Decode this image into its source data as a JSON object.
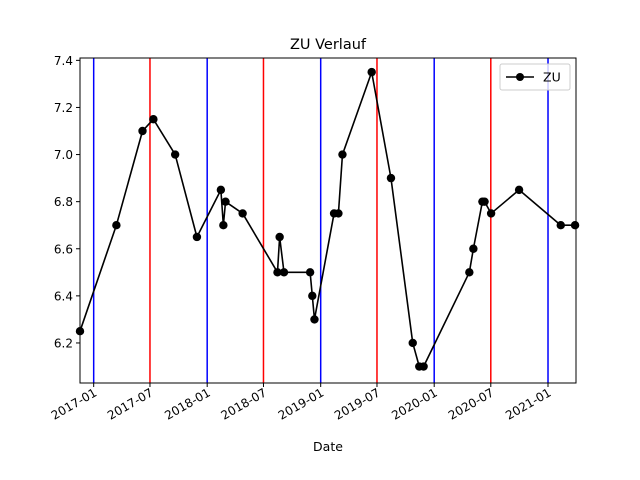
{
  "chart_data": {
    "type": "line",
    "title": "ZU Verlauf",
    "xlabel": "Date",
    "ylabel": "",
    "xlim": [
      "2016-11-18",
      "2021-04-01"
    ],
    "ylim": [
      6.03,
      7.41
    ],
    "x_ticks": [
      "2017-01-01",
      "2017-07-01",
      "2018-01-01",
      "2018-07-01",
      "2019-01-01",
      "2019-07-01",
      "2020-01-01",
      "2020-07-01",
      "2021-01-01"
    ],
    "x_tick_labels": [
      "2017-01",
      "2017-07",
      "2018-01",
      "2018-07",
      "2019-01",
      "2019-07",
      "2020-01",
      "2020-07",
      "2021-01"
    ],
    "y_ticks": [
      6.2,
      6.4,
      6.6,
      6.8,
      7.0,
      7.2,
      7.4
    ],
    "y_tick_labels": [
      "6.2",
      "6.4",
      "6.6",
      "6.8",
      "7.0",
      "7.2",
      "7.4"
    ],
    "grid": false,
    "legend": {
      "position": "top-right"
    },
    "vertical_lines": [
      {
        "x": "2017-01-01",
        "color": "#0000ff"
      },
      {
        "x": "2017-07-01",
        "color": "#ff0000"
      },
      {
        "x": "2018-01-01",
        "color": "#0000ff"
      },
      {
        "x": "2018-07-01",
        "color": "#ff0000"
      },
      {
        "x": "2019-01-01",
        "color": "#0000ff"
      },
      {
        "x": "2019-07-01",
        "color": "#ff0000"
      },
      {
        "x": "2020-01-01",
        "color": "#0000ff"
      },
      {
        "x": "2020-07-01",
        "color": "#ff0000"
      },
      {
        "x": "2021-01-01",
        "color": "#0000ff"
      }
    ],
    "series": [
      {
        "name": "ZU",
        "color": "#000000",
        "marker": "circle",
        "x": [
          "2016-11-18",
          "2017-03-15",
          "2017-06-07",
          "2017-07-12",
          "2017-09-20",
          "2017-11-29",
          "2018-02-14",
          "2018-02-22",
          "2018-03-01",
          "2018-04-25",
          "2018-08-15",
          "2018-08-22",
          "2018-09-05",
          "2018-11-28",
          "2018-12-05",
          "2018-12-12",
          "2019-02-13",
          "2019-02-27",
          "2019-03-12",
          "2019-06-14",
          "2019-08-15",
          "2019-10-24",
          "2019-11-14",
          "2019-11-28",
          "2020-04-23",
          "2020-05-06",
          "2020-06-04",
          "2020-06-11",
          "2020-07-02",
          "2020-09-30",
          "2021-02-11",
          "2021-03-29"
        ],
        "y": [
          6.25,
          6.7,
          7.1,
          7.15,
          7.0,
          6.65,
          6.85,
          6.7,
          6.8,
          6.75,
          6.5,
          6.65,
          6.5,
          6.5,
          6.4,
          6.3,
          6.75,
          6.75,
          7.0,
          7.35,
          6.9,
          6.2,
          6.1,
          6.1,
          6.5,
          6.6,
          6.8,
          6.8,
          6.75,
          6.85,
          6.7,
          6.7
        ]
      }
    ]
  }
}
